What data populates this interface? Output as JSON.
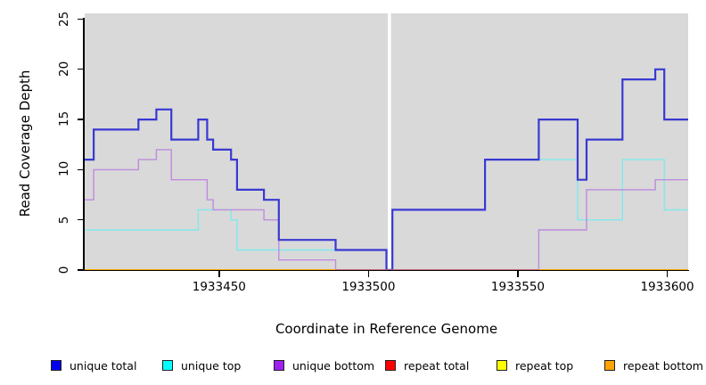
{
  "figure": {
    "x_axis_title": "Coordinate in Reference Genome",
    "y_axis_title": "Read Coverage Depth"
  },
  "chart_data": {
    "type": "line",
    "step": true,
    "title": "",
    "xlabel": "Coordinate in Reference Genome",
    "ylabel": "Read Coverage Depth",
    "xlim": [
      1933405,
      1933607
    ],
    "ylim": [
      0,
      25
    ],
    "x_ticks": [
      1933450,
      1933500,
      1933550,
      1933600
    ],
    "y_ticks": [
      0,
      5,
      10,
      15,
      20,
      25
    ],
    "grid": false,
    "plot_background": "#D9D9D9",
    "legend_position": "bottom",
    "gap_region": {
      "from": 1933506,
      "to": 1933508,
      "note": "white vertical band, coverage drops to 0"
    },
    "series": [
      {
        "name": "unique total",
        "legend_color": "#0000EE",
        "line_color": "#3939D2",
        "line_width": 2.2,
        "steps": [
          [
            1933405,
            11
          ],
          [
            1933408,
            14
          ],
          [
            1933423,
            15
          ],
          [
            1933429,
            16
          ],
          [
            1933434,
            13
          ],
          [
            1933443,
            15
          ],
          [
            1933446,
            13
          ],
          [
            1933448,
            12
          ],
          [
            1933454,
            11
          ],
          [
            1933456,
            8
          ],
          [
            1933465,
            7
          ],
          [
            1933470,
            3
          ],
          [
            1933489,
            2
          ],
          [
            1933506,
            0
          ],
          [
            1933508,
            6
          ],
          [
            1933539,
            11
          ],
          [
            1933557,
            15
          ],
          [
            1933570,
            9
          ],
          [
            1933573,
            13
          ],
          [
            1933585,
            19
          ],
          [
            1933596,
            20
          ],
          [
            1933599,
            15
          ]
        ]
      },
      {
        "name": "unique top",
        "legend_color": "#00FFFF",
        "line_color": "#7FE9EC",
        "line_width": 1.4,
        "steps": [
          [
            1933405,
            4
          ],
          [
            1933443,
            6
          ],
          [
            1933454,
            5
          ],
          [
            1933456,
            2
          ],
          [
            1933506,
            0
          ],
          [
            1933508,
            6
          ],
          [
            1933539,
            11
          ],
          [
            1933570,
            5
          ],
          [
            1933585,
            11
          ],
          [
            1933599,
            6
          ]
        ]
      },
      {
        "name": "unique bottom",
        "legend_color": "#A020F0",
        "line_color": "#BE8BDE",
        "line_width": 1.4,
        "steps": [
          [
            1933405,
            7
          ],
          [
            1933408,
            10
          ],
          [
            1933423,
            11
          ],
          [
            1933429,
            12
          ],
          [
            1933434,
            9
          ],
          [
            1933446,
            7
          ],
          [
            1933448,
            6
          ],
          [
            1933465,
            5
          ],
          [
            1933470,
            1
          ],
          [
            1933489,
            0
          ],
          [
            1933557,
            4
          ],
          [
            1933573,
            8
          ],
          [
            1933596,
            9
          ]
        ]
      },
      {
        "name": "repeat total",
        "legend_color": "#FF0000",
        "line_color": "#FF0000",
        "line_width": 1.4,
        "steps": [
          [
            1933405,
            0
          ]
        ]
      },
      {
        "name": "repeat top",
        "legend_color": "#FFFF00",
        "line_color": "#FFFF00",
        "line_width": 1.4,
        "steps": [
          [
            1933405,
            0
          ]
        ]
      },
      {
        "name": "repeat bottom",
        "legend_color": "#FFA500",
        "line_color": "#FFA500",
        "line_width": 1.6,
        "steps": [
          [
            1933405,
            0
          ]
        ]
      }
    ],
    "zero_line_segments": [
      {
        "from": 1933405,
        "to": 1933489,
        "color": "#FFA500"
      },
      {
        "from": 1933489,
        "to": 1933557,
        "color": "#C7607F"
      },
      {
        "from": 1933557,
        "to": 1933607,
        "color": "#FFA500"
      }
    ]
  },
  "legend": {
    "items": [
      {
        "label": "unique total"
      },
      {
        "label": "unique top"
      },
      {
        "label": "unique bottom"
      },
      {
        "label": "repeat total"
      },
      {
        "label": "repeat top"
      },
      {
        "label": "repeat bottom"
      }
    ]
  }
}
